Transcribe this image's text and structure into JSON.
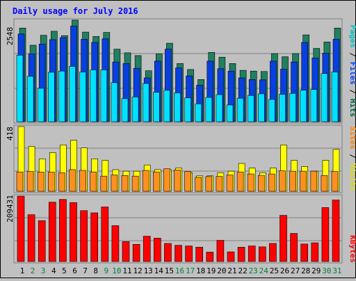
{
  "chart_data": [
    {
      "type": "bar",
      "title": "Daily usage for July 2016",
      "ylabel_max": "2548",
      "ymax": 2548,
      "legend": [
        {
          "label": "Pages",
          "color": "#00c0c0"
        },
        {
          "label": "Files",
          "color": "#0040ff"
        },
        {
          "label": "Hits",
          "color": "#006040"
        }
      ],
      "categories": [
        "1",
        "2",
        "3",
        "4",
        "5",
        "6",
        "7",
        "8",
        "9",
        "10",
        "11",
        "12",
        "13",
        "14",
        "15",
        "16",
        "17",
        "18",
        "19",
        "20",
        "21",
        "22",
        "23",
        "24",
        "25",
        "26",
        "27",
        "28",
        "29",
        "30",
        "31"
      ],
      "weekend_days": [
        "2",
        "3",
        "9",
        "10",
        "16",
        "17",
        "23",
        "24",
        "30",
        "31"
      ],
      "series": [
        {
          "name": "Hits",
          "color": "#208060",
          "values": [
            2350,
            1920,
            2170,
            2270,
            2160,
            2550,
            2250,
            2140,
            2240,
            1820,
            1730,
            1660,
            1280,
            1700,
            1970,
            1460,
            1310,
            1060,
            1740,
            1620,
            1460,
            1290,
            1270,
            1260,
            1710,
            1630,
            1710,
            2180,
            1840,
            2000,
            2350
          ]
        },
        {
          "name": "Files",
          "color": "#0840e0",
          "values": [
            2200,
            1700,
            1950,
            2060,
            2110,
            2400,
            2070,
            1990,
            2080,
            1500,
            1460,
            1340,
            1100,
            1520,
            1820,
            1350,
            1150,
            920,
            1520,
            1330,
            1270,
            1100,
            1060,
            1050,
            1520,
            1320,
            1500,
            1990,
            1600,
            1720,
            2070
          ]
        },
        {
          "name": "Pages",
          "color": "#00e0ff",
          "values": [
            1670,
            1140,
            840,
            1240,
            1270,
            1390,
            1250,
            1300,
            1300,
            980,
            580,
            620,
            960,
            740,
            790,
            720,
            600,
            450,
            610,
            680,
            420,
            590,
            660,
            700,
            560,
            690,
            710,
            790,
            810,
            1210,
            1250
          ]
        }
      ]
    },
    {
      "type": "bar",
      "ylabel_max": "418",
      "ymax": 418,
      "legend": [
        {
          "label": "Sites",
          "color": "#ff8000"
        },
        {
          "label": "Visits",
          "color": "#e0e000"
        }
      ],
      "categories": [
        "1",
        "2",
        "3",
        "4",
        "5",
        "6",
        "7",
        "8",
        "9",
        "10",
        "11",
        "12",
        "13",
        "14",
        "15",
        "16",
        "17",
        "18",
        "19",
        "20",
        "21",
        "22",
        "23",
        "24",
        "25",
        "26",
        "27",
        "28",
        "29",
        "30",
        "31"
      ],
      "series": [
        {
          "name": "Visits",
          "color": "#ffff00",
          "values": [
            418,
            290,
            210,
            250,
            300,
            330,
            280,
            210,
            200,
            140,
            130,
            130,
            170,
            140,
            140,
            150,
            120,
            100,
            100,
            120,
            130,
            180,
            150,
            120,
            150,
            300,
            200,
            160,
            130,
            200,
            270
          ]
        },
        {
          "name": "Sites",
          "color": "#ff9020",
          "values": [
            125,
            128,
            124,
            124,
            120,
            140,
            135,
            125,
            98,
            105,
            102,
            98,
            135,
            125,
            145,
            138,
            128,
            90,
            95,
            96,
            105,
            125,
            112,
            103,
            112,
            132,
            130,
            130,
            130,
            102,
            128
          ]
        }
      ]
    },
    {
      "type": "bar",
      "ylabel_max": "209431",
      "ymax": 209431,
      "legend": [
        {
          "label": "KBytes",
          "color": "#ff0000"
        }
      ],
      "categories": [
        "1",
        "2",
        "3",
        "4",
        "5",
        "6",
        "7",
        "8",
        "9",
        "10",
        "11",
        "12",
        "13",
        "14",
        "15",
        "16",
        "17",
        "18",
        "19",
        "20",
        "21",
        "22",
        "23",
        "24",
        "25",
        "26",
        "27",
        "28",
        "29",
        "30",
        "31"
      ],
      "series": [
        {
          "name": "KBytes",
          "color": "#ff0000",
          "values": [
            209431,
            150000,
            131000,
            190000,
            199000,
            189000,
            163000,
            156000,
            175000,
            115000,
            64000,
            55000,
            81000,
            75000,
            58000,
            52000,
            50000,
            46000,
            30000,
            68000,
            31000,
            46000,
            50000,
            47000,
            58000,
            148000,
            90000,
            56000,
            60000,
            173000,
            197000
          ]
        }
      ]
    }
  ]
}
